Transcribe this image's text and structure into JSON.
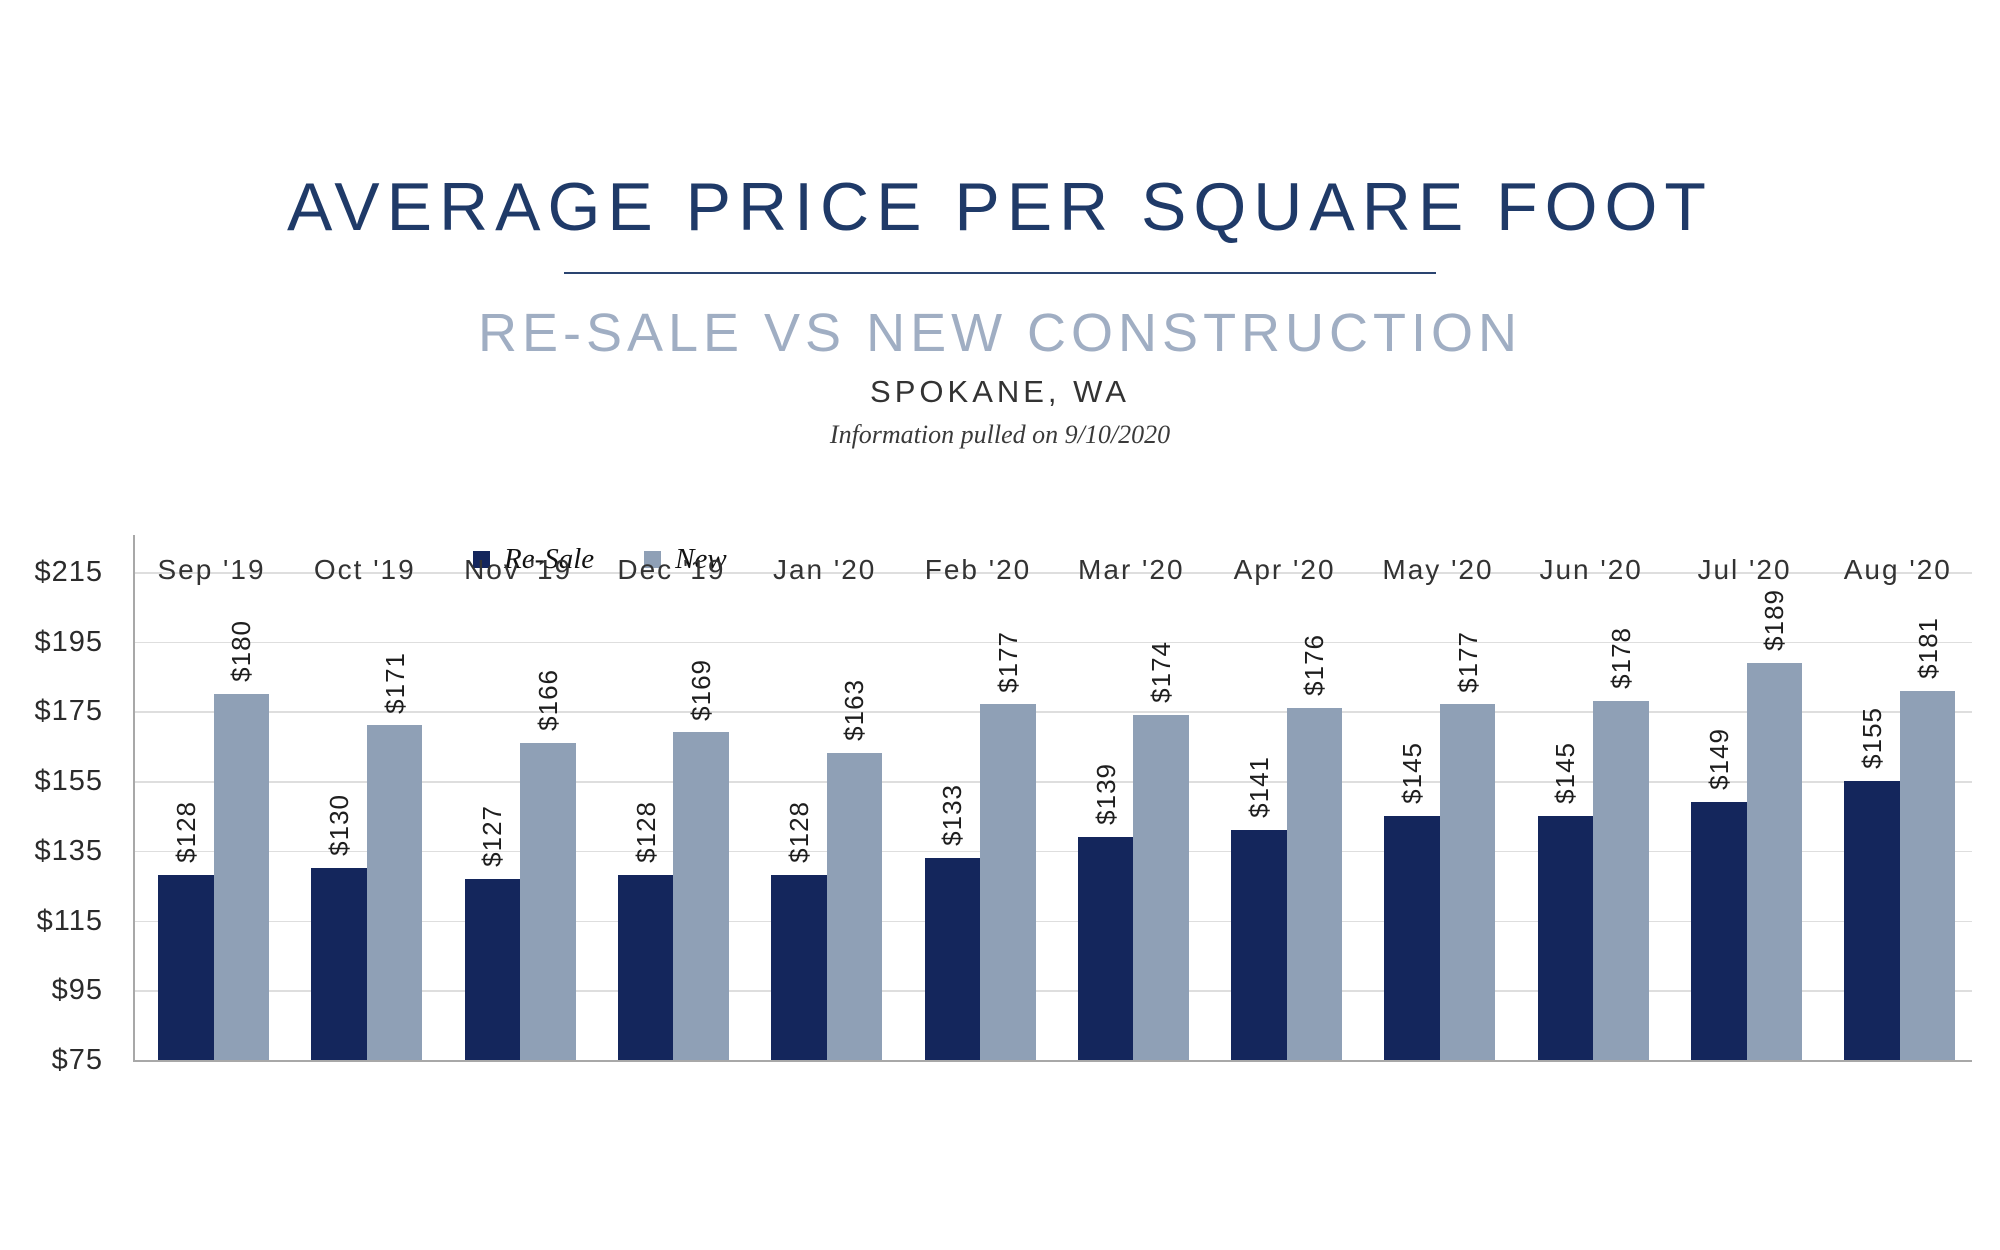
{
  "header": {
    "title": "AVERAGE PRICE PER SQUARE FOOT",
    "subtitle": "RE-SALE VS NEW CONSTRUCTION",
    "location": "SPOKANE, WA",
    "info_note": "Information pulled on 9/10/2020"
  },
  "colors": {
    "resale_navy": "#14265C",
    "new_gray_blue": "#8FA0B6",
    "title_navy": "#1F3A68",
    "subtitle_gray_blue": "#A0AEC3",
    "axis_gray": "#A8A8A8",
    "gridline_gray": "#DEDEDE"
  },
  "legend": {
    "items": [
      {
        "label": "Re-Sale",
        "color": "#14265C"
      },
      {
        "label": "New",
        "color": "#8FA0B6"
      }
    ]
  },
  "chart_data": {
    "type": "bar",
    "title": "Average Price Per Square Foot — Re-Sale vs New Construction, Spokane, WA",
    "categories": [
      "Sep '19",
      "Oct '19",
      "Nov '19",
      "Dec '19",
      "Jan '20",
      "Feb '20",
      "Mar '20",
      "Apr '20",
      "May '20",
      "Jun '20",
      "Jul '20",
      "Aug '20"
    ],
    "series": [
      {
        "name": "Re-Sale",
        "color": "#14265C",
        "values": [
          128,
          130,
          127,
          128,
          128,
          133,
          139,
          141,
          145,
          145,
          149,
          155
        ]
      },
      {
        "name": "New",
        "color": "#8FA0B6",
        "values": [
          180,
          171,
          166,
          169,
          163,
          177,
          174,
          176,
          177,
          178,
          189,
          181
        ]
      }
    ],
    "value_prefix": "$",
    "data_labels": true,
    "data_label_rotation": -90,
    "y_ticks": [
      215,
      195,
      175,
      155,
      135,
      115,
      95,
      75
    ],
    "y_tick_labels": [
      "$215",
      "$195",
      "$175",
      "$155",
      "$135",
      "$115",
      "$95",
      "$75"
    ],
    "ylim": [
      75,
      225
    ],
    "grid": "horizontal",
    "legend_position": "top-left-of-plot"
  }
}
